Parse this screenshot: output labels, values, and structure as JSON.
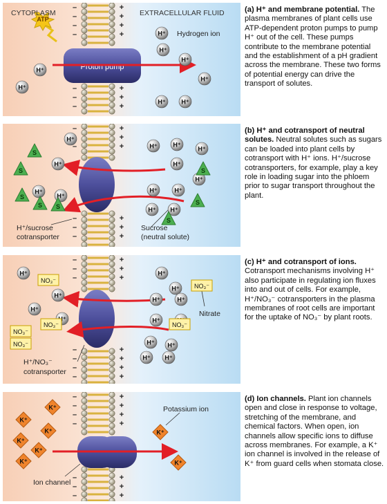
{
  "panel_a": {
    "cytoplasm_label": "CYTOPLASM",
    "extracellular_label": "EXTRACELLULAR FLUID",
    "atp_label": "ATP",
    "hydrogen_ion_label": "Hydrogen ion",
    "pump_label": "Proton pump",
    "heading": "(a) H⁺ and membrane potential.",
    "body": "The plasma membranes of plant cells use ATP-dependent proton pumps to pump H⁺ out of the cell. These pumps contribute to the membrane potential and the establishment of a pH gradient across the membrane. These two forms of potential energy can drive the transport of solutes."
  },
  "panel_b": {
    "cotransporter_label_1": "H⁺/sucrose",
    "cotransporter_label_2": "cotransporter",
    "sucrose_label_1": "Sucrose",
    "sucrose_label_2": "(neutral solute)",
    "heading": "(b) H⁺ and cotransport of neutral solutes.",
    "body": "Neutral solutes such as sugars can be loaded into plant cells by cotransport with H⁺ ions. H⁺/sucrose cotransporters, for example, play a key role in loading sugar into the phloem prior to sugar transport throughout the plant."
  },
  "panel_c": {
    "nitrate_label": "Nitrate",
    "cotransporter_label_1": "H⁺/NO₃⁻",
    "cotransporter_label_2": "cotransporter",
    "heading": "(c) H⁺ and cotransport of ions.",
    "body": "Cotransport mechanisms involving H⁺ also participate in regulating ion fluxes into and out of cells. For example, H⁺/NO₃⁻ cotransporters in the plasma membranes of root cells are important for the uptake of NO₃⁻ by plant roots."
  },
  "panel_d": {
    "potassium_label": "Potassium ion",
    "channel_label": "Ion channel",
    "heading": "(d) Ion channels.",
    "body": "Plant ion channels open and close in response to voltage, stretching of the membrane, and chemical factors. When open, ion channels allow specific ions to diffuse across membranes. For example, a K⁺ ion channel is involved in the release of K⁺ from guard cells when stomata close."
  },
  "symbols": {
    "h_ion": "H⁺",
    "k_ion": "K⁺",
    "nitrate_ion": "NO₃⁻",
    "sucrose": "S",
    "minus": "–",
    "plus": "+"
  },
  "colors": {
    "cytoplasm_bg": "#f9d9c4",
    "extracellular_bg": "#c7e3f6",
    "membrane_head": "#a8a28a",
    "membrane_tail": "#d9b23f",
    "protein": "#4d4f9c",
    "arrow": "#e21f26",
    "sucrose": "#4caf50",
    "potassium": "#f0842c",
    "nitrate_box": "#fff2a8"
  }
}
